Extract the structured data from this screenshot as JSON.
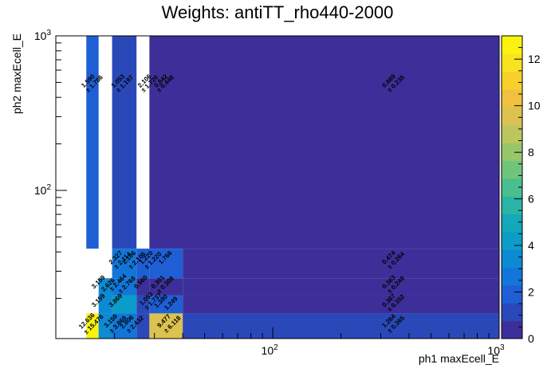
{
  "chart_data": {
    "type": "heatmap",
    "title": "Weights: antiTT_rho440-2000",
    "xlabel": "ph1 maxEcell_E",
    "ylabel": "ph2 maxEcell_E",
    "x_scale": "log",
    "y_scale": "log",
    "xlim": [
      11,
      1000
    ],
    "ylim": [
      11,
      1000
    ],
    "x_major_ticks": [
      {
        "value": 100,
        "label": "10^2"
      },
      {
        "value": 1000,
        "label": "10^3"
      }
    ],
    "y_major_ticks": [
      {
        "value": 100,
        "label": "10^2"
      },
      {
        "value": 1000,
        "label": "10^3"
      }
    ],
    "colorbar": {
      "range": [
        0,
        13
      ],
      "ticks": [
        0,
        2,
        4,
        6,
        8,
        10,
        12
      ],
      "colors": [
        "#3d2f99",
        "#2b48b8",
        "#1f5fd6",
        "#1276d9",
        "#0d8ad4",
        "#0b9cc9",
        "#14a8b8",
        "#2bb4a5",
        "#4bbe8f",
        "#71c47b",
        "#98c76a",
        "#bdc65e",
        "#dcc24f",
        "#efc13e",
        "#f7d02c",
        "#f9e21f",
        "#f9f30f"
      ]
    },
    "cells": [
      {
        "x0": 15,
        "x1": 17,
        "y0": 42,
        "y1": 1000,
        "value": 1.59
      },
      {
        "x0": 19.5,
        "x1": 25,
        "y0": 42,
        "y1": 1000,
        "value": 1.053
      },
      {
        "x0": 28.5,
        "x1": 1000,
        "y0": 42,
        "y1": 1000,
        "value": 0.669
      },
      {
        "x0": 19.5,
        "x1": 25,
        "y0": 27,
        "y1": 42,
        "value": 2.327
      },
      {
        "x0": 25,
        "x1": 28.5,
        "y0": 27,
        "y1": 42,
        "value": 2.106
      },
      {
        "x0": 28.5,
        "x1": 40,
        "y0": 27,
        "y1": 42,
        "value": 1.766
      },
      {
        "x0": 40,
        "x1": 1000,
        "y0": 27,
        "y1": 42,
        "value": 0.474
      },
      {
        "x0": 17,
        "x1": 19.5,
        "y0": 21,
        "y1": 27,
        "value": 3.159
      },
      {
        "x0": 19.5,
        "x1": 25,
        "y0": 21,
        "y1": 27,
        "value": 2.626
      },
      {
        "x0": 25,
        "x1": 28.5,
        "y0": 21,
        "y1": 27,
        "value": 0.56
      },
      {
        "x0": 28.5,
        "x1": 40,
        "y0": 21,
        "y1": 27,
        "value": 0.301
      },
      {
        "x0": 40,
        "x1": 1000,
        "y0": 21,
        "y1": 27,
        "value": 0.363
      },
      {
        "x0": 17,
        "x1": 19.5,
        "y0": 16,
        "y1": 21,
        "value": 3.159
      },
      {
        "x0": 19.5,
        "x1": 25,
        "y0": 16,
        "y1": 21,
        "value": 3.869
      },
      {
        "x0": 25,
        "x1": 28.5,
        "y0": 16,
        "y1": 21,
        "value": 1.053
      },
      {
        "x0": 28.5,
        "x1": 40,
        "y0": 16,
        "y1": 21,
        "value": 1.737
      },
      {
        "x0": 40,
        "x1": 1000,
        "y0": 16,
        "y1": 21,
        "value": 0.367
      },
      {
        "x0": 15,
        "x1": 17,
        "y0": 11,
        "y1": 16,
        "value": 12.636
      },
      {
        "x0": 17,
        "x1": 19.5,
        "y0": 11,
        "y1": 16,
        "value": 3.159
      },
      {
        "x0": 19.5,
        "x1": 25,
        "y0": 11,
        "y1": 16,
        "value": 2.806
      },
      {
        "x0": 25,
        "x1": 28.5,
        "y0": 11,
        "y1": 16,
        "value": 1.106
      },
      {
        "x0": 28.5,
        "x1": 40,
        "y0": 11,
        "y1": 16,
        "value": 9.477
      },
      {
        "x0": 40,
        "x1": 1000,
        "y0": 11,
        "y1": 16,
        "value": 1.264
      }
    ],
    "cell_labels": [
      {
        "x": 15.5,
        "y": 500,
        "text": "1.590"
      },
      {
        "x": 16.5,
        "y": 480,
        "text": "± 1.786"
      },
      {
        "x": 21,
        "y": 500,
        "text": "1.053"
      },
      {
        "x": 22.5,
        "y": 480,
        "text": "± 1.197"
      },
      {
        "x": 27.5,
        "y": 500,
        "text": "2.106"
      },
      {
        "x": 29,
        "y": 480,
        "text": "± 1.720"
      },
      {
        "x": 32.5,
        "y": 500,
        "text": "0.842"
      },
      {
        "x": 34,
        "y": 480,
        "text": "± 0.448"
      },
      {
        "x": 330,
        "y": 500,
        "text": "0.669"
      },
      {
        "x": 355,
        "y": 480,
        "text": "± 0.235"
      },
      {
        "x": 20.5,
        "y": 36,
        "text": "2.327"
      },
      {
        "x": 22,
        "y": 34.5,
        "text": "± 2.114"
      },
      {
        "x": 23.5,
        "y": 36,
        "text": "2.106"
      },
      {
        "x": 25.5,
        "y": 34.5,
        "text": "± 2.106"
      },
      {
        "x": 28,
        "y": 36,
        "text": "1.220"
      },
      {
        "x": 30,
        "y": 34.5,
        "text": "± 1.220"
      },
      {
        "x": 34,
        "y": 36,
        "text": "1.766"
      },
      {
        "x": 330,
        "y": 36,
        "text": "0.474"
      },
      {
        "x": 355,
        "y": 34.5,
        "text": "± 0.264"
      },
      {
        "x": 17.2,
        "y": 25,
        "text": "3.159"
      },
      {
        "x": 19,
        "y": 24,
        "text": "2.626"
      },
      {
        "x": 21,
        "y": 24.8,
        "text": "± 2.464"
      },
      {
        "x": 23,
        "y": 24,
        "text": "± 2.768"
      },
      {
        "x": 26.5,
        "y": 25,
        "text": "0.560"
      },
      {
        "x": 31.5,
        "y": 25,
        "text": "0.301"
      },
      {
        "x": 34,
        "y": 24,
        "text": "± 0.308"
      },
      {
        "x": 330,
        "y": 25,
        "text": "0.363"
      },
      {
        "x": 355,
        "y": 24,
        "text": "± 0.249"
      },
      {
        "x": 17.2,
        "y": 19,
        "text": "3.159"
      },
      {
        "x": 20.5,
        "y": 19,
        "text": "3.869"
      },
      {
        "x": 28,
        "y": 19.5,
        "text": "1.053"
      },
      {
        "x": 30,
        "y": 18.8,
        "text": "± 1.737"
      },
      {
        "x": 32.5,
        "y": 18.8,
        "text": "1.380"
      },
      {
        "x": 36,
        "y": 18.2,
        "text": "1.249"
      },
      {
        "x": 330,
        "y": 19,
        "text": "0.367"
      },
      {
        "x": 355,
        "y": 18.3,
        "text": "± 0.352"
      },
      {
        "x": 15.3,
        "y": 14,
        "text": "12.636"
      },
      {
        "x": 16.4,
        "y": 13.3,
        "text": "± 15.476"
      },
      {
        "x": 19.5,
        "y": 14,
        "text": "3.159"
      },
      {
        "x": 21,
        "y": 13.3,
        "text": "± 3.869"
      },
      {
        "x": 23,
        "y": 13.8,
        "text": "2.806"
      },
      {
        "x": 25,
        "y": 13.3,
        "text": "± 2.432"
      },
      {
        "x": 33.5,
        "y": 14,
        "text": "9.477"
      },
      {
        "x": 36.5,
        "y": 13.3,
        "text": "± 6.118"
      },
      {
        "x": 330,
        "y": 14,
        "text": "1.264"
      },
      {
        "x": 355,
        "y": 13.3,
        "text": "± 0.365"
      }
    ]
  }
}
